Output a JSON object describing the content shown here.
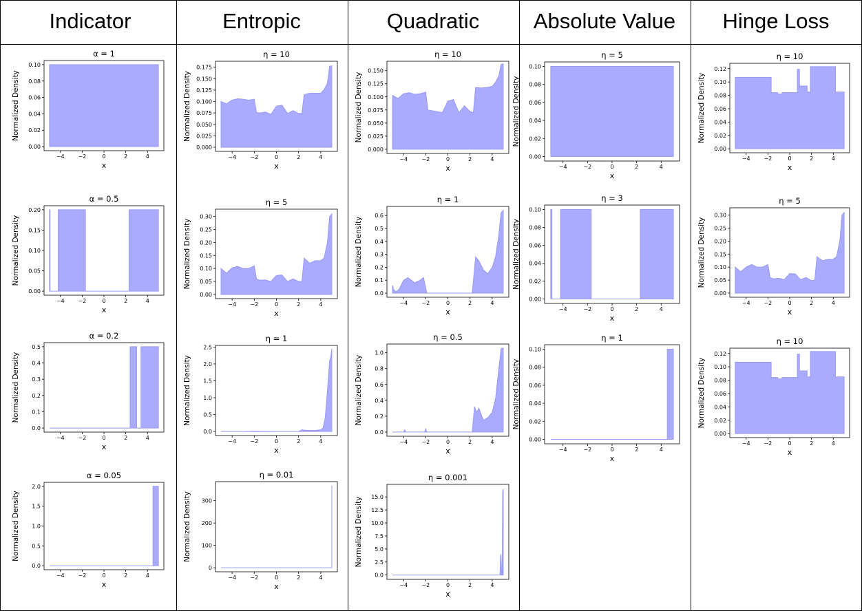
{
  "columns": [
    "Indicator",
    "Entropic",
    "Quadratic",
    "Absolute Value",
    "Hinge Loss"
  ],
  "colors": {
    "fill": "#aaaaff",
    "line": "#9a9af5",
    "border": "#000000"
  },
  "chart_data": [
    {
      "col": 0,
      "type": "area",
      "title": "α = 1",
      "xlabel": "x",
      "ylabel": "Normalized Density",
      "xlim": [
        -5.5,
        5.5
      ],
      "ylim": [
        -0.005,
        0.105
      ],
      "xticks": [
        -4,
        -2,
        0,
        2,
        4
      ],
      "xtick_labels": [
        "−4",
        "−2",
        "0",
        "2",
        "4"
      ],
      "yticks": [
        0,
        0.02,
        0.04,
        0.06,
        0.08,
        0.1
      ],
      "ytick_labels": [
        "0.00",
        "0.02",
        "0.04",
        "0.06",
        "0.08",
        "0.10"
      ],
      "x": [
        -5,
        5
      ],
      "y": [
        0.1,
        0.1
      ],
      "step": true
    },
    {
      "col": 0,
      "type": "area",
      "title": "α = 0.5",
      "xlabel": "x",
      "ylabel": "Normalized Density",
      "xlim": [
        -5.5,
        5.5
      ],
      "ylim": [
        -0.01,
        0.21
      ],
      "xticks": [
        -4,
        -2,
        0,
        2,
        4
      ],
      "xtick_labels": [
        "−4",
        "−2",
        "0",
        "2",
        "4"
      ],
      "yticks": [
        0,
        0.05,
        0.1,
        0.15,
        0.2
      ],
      "ytick_labels": [
        "0.00",
        "0.05",
        "0.10",
        "0.15",
        "0.20"
      ],
      "x": [
        -5,
        -4.95,
        -4.2,
        -1.7,
        2.3,
        5
      ],
      "y": [
        0.2,
        0,
        0.2,
        0,
        0.2,
        0.2
      ],
      "step": true
    },
    {
      "col": 0,
      "type": "area",
      "title": "α = 0.2",
      "xlabel": "x",
      "ylabel": "Normalized Density",
      "xlim": [
        -5.5,
        5.5
      ],
      "ylim": [
        -0.025,
        0.525
      ],
      "xticks": [
        -4,
        -2,
        0,
        2,
        4
      ],
      "xtick_labels": [
        "−4",
        "−2",
        "0",
        "2",
        "4"
      ],
      "yticks": [
        0,
        0.1,
        0.2,
        0.3,
        0.4,
        0.5
      ],
      "ytick_labels": [
        "0.0",
        "0.1",
        "0.2",
        "0.3",
        "0.4",
        "0.5"
      ],
      "x": [
        -5,
        2.4,
        3.0,
        3.4,
        3.7,
        5
      ],
      "y": [
        0,
        0.5,
        0,
        0.5,
        0.5,
        0.5
      ],
      "step": true
    },
    {
      "col": 0,
      "type": "area",
      "title": "α = 0.05",
      "xlabel": "x",
      "ylabel": "Normalized Density",
      "xlim": [
        -5.5,
        5.5
      ],
      "ylim": [
        -0.1,
        2.1
      ],
      "xticks": [
        -4,
        -2,
        0,
        2,
        4
      ],
      "xtick_labels": [
        "−4",
        "−2",
        "0",
        "2",
        "4"
      ],
      "yticks": [
        0,
        0.5,
        1,
        1.5,
        2
      ],
      "ytick_labels": [
        "0.0",
        "0.5",
        "1.0",
        "1.5",
        "2.0"
      ],
      "x": [
        -5,
        4.5,
        5
      ],
      "y": [
        0,
        2,
        2
      ],
      "step": true
    },
    {
      "col": 1,
      "type": "area",
      "title": "η = 10",
      "xlabel": "x",
      "ylabel": "Normalized Density",
      "xlim": [
        -5.5,
        5.5
      ],
      "ylim": [
        -0.009,
        0.188
      ],
      "xticks": [
        -4,
        -2,
        0,
        2,
        4
      ],
      "xtick_labels": [
        "−4",
        "−2",
        "0",
        "2",
        "4"
      ],
      "yticks": [
        0,
        0.025,
        0.05,
        0.075,
        0.1,
        0.125,
        0.15,
        0.175
      ],
      "ytick_labels": [
        "0.000",
        "0.025",
        "0.050",
        "0.075",
        "0.100",
        "0.125",
        "0.150",
        "0.175"
      ],
      "x": [
        -5,
        -4.5,
        -4,
        -3.5,
        -3,
        -2.5,
        -2,
        -1.8,
        -1.5,
        -1,
        -0.5,
        0,
        0.5,
        1,
        1.5,
        2,
        2.3,
        2.5,
        3,
        3.5,
        4,
        4.3,
        4.6,
        4.8,
        5
      ],
      "y": [
        0.1,
        0.095,
        0.103,
        0.106,
        0.105,
        0.103,
        0.105,
        0.076,
        0.075,
        0.077,
        0.072,
        0.09,
        0.092,
        0.074,
        0.08,
        0.074,
        0.074,
        0.115,
        0.118,
        0.118,
        0.118,
        0.126,
        0.14,
        0.177,
        0.178
      ],
      "step": false
    },
    {
      "col": 1,
      "type": "area",
      "title": "η = 5",
      "xlabel": "x",
      "ylabel": "Normalized Density",
      "xlim": [
        -5.5,
        5.5
      ],
      "ylim": [
        -0.016,
        0.328
      ],
      "xticks": [
        -4,
        -2,
        0,
        2,
        4
      ],
      "xtick_labels": [
        "−4",
        "−2",
        "0",
        "2",
        "4"
      ],
      "yticks": [
        0,
        0.05,
        0.1,
        0.15,
        0.2,
        0.25,
        0.3
      ],
      "ytick_labels": [
        "0.00",
        "0.05",
        "0.10",
        "0.15",
        "0.20",
        "0.25",
        "0.30"
      ],
      "x": [
        -5,
        -4.5,
        -4,
        -3.5,
        -3,
        -2.5,
        -2,
        -1.8,
        -1.5,
        -1,
        -0.5,
        0,
        0.5,
        1,
        1.5,
        2,
        2.3,
        2.5,
        3,
        3.5,
        4,
        4.3,
        4.6,
        4.8,
        5
      ],
      "y": [
        0.1,
        0.082,
        0.103,
        0.108,
        0.1,
        0.1,
        0.11,
        0.06,
        0.055,
        0.056,
        0.05,
        0.073,
        0.075,
        0.05,
        0.06,
        0.05,
        0.05,
        0.14,
        0.12,
        0.13,
        0.13,
        0.14,
        0.2,
        0.3,
        0.31
      ],
      "step": false
    },
    {
      "col": 1,
      "type": "area",
      "title": "η = 1",
      "xlabel": "x",
      "ylabel": "Normalized Density",
      "xlim": [
        -5.5,
        5.5
      ],
      "ylim": [
        -0.12,
        2.55
      ],
      "xticks": [
        -4,
        -2,
        0,
        2,
        4
      ],
      "xtick_labels": [
        "−4",
        "−2",
        "0",
        "2",
        "4"
      ],
      "yticks": [
        0,
        0.5,
        1,
        1.5,
        2,
        2.5
      ],
      "ytick_labels": [
        "0.0",
        "0.5",
        "1.0",
        "1.5",
        "2.0",
        "2.5"
      ],
      "x": [
        -5,
        -3,
        -2,
        0,
        2,
        2.3,
        2.5,
        3,
        3.5,
        4,
        4.2,
        4.4,
        4.6,
        4.8,
        4.9,
        5
      ],
      "y": [
        0,
        0,
        0.01,
        0,
        0,
        0.05,
        0.04,
        0.03,
        0.03,
        0.05,
        0.1,
        0.4,
        1.2,
        2.1,
        2.2,
        2.45
      ],
      "step": false
    },
    {
      "col": 1,
      "type": "area",
      "title": "η = 0.01",
      "xlabel": "x",
      "ylabel": "Normalized Density",
      "xlim": [
        -5.5,
        5.5
      ],
      "ylim": [
        -18,
        385
      ],
      "xticks": [
        -4,
        -2,
        0,
        2,
        4
      ],
      "xtick_labels": [
        "−4",
        "−2",
        "0",
        "2",
        "4"
      ],
      "yticks": [
        0,
        100,
        200,
        300
      ],
      "ytick_labels": [
        "0",
        "100",
        "200",
        "300"
      ],
      "x": [
        -5,
        4.97,
        5
      ],
      "y": [
        0,
        0,
        368
      ],
      "step": true
    },
    {
      "col": 2,
      "type": "area",
      "title": "η = 10",
      "xlabel": "x",
      "ylabel": "Normalized Density",
      "xlim": [
        -5.5,
        5.5
      ],
      "ylim": [
        -0.008,
        0.168
      ],
      "xticks": [
        -4,
        -2,
        0,
        2,
        4
      ],
      "xtick_labels": [
        "−4",
        "−2",
        "0",
        "2",
        "4"
      ],
      "yticks": [
        0,
        0.025,
        0.05,
        0.075,
        0.1,
        0.125,
        0.15
      ],
      "ytick_labels": [
        "0.000",
        "0.025",
        "0.050",
        "0.075",
        "0.100",
        "0.125",
        "0.150"
      ],
      "x": [
        -5,
        -4.5,
        -4,
        -3.5,
        -3,
        -2.5,
        -2,
        -1.8,
        -1.5,
        -1,
        -0.5,
        0,
        0.5,
        1,
        1.5,
        2,
        2.3,
        2.5,
        3,
        3.5,
        4,
        4.3,
        4.6,
        4.8,
        5
      ],
      "y": [
        0.103,
        0.097,
        0.106,
        0.108,
        0.105,
        0.106,
        0.109,
        0.075,
        0.074,
        0.072,
        0.07,
        0.092,
        0.095,
        0.07,
        0.083,
        0.072,
        0.07,
        0.118,
        0.117,
        0.118,
        0.12,
        0.128,
        0.14,
        0.162,
        0.163
      ],
      "step": false
    },
    {
      "col": 2,
      "type": "area",
      "title": "η = 1",
      "xlabel": "x",
      "ylabel": "Normalized Density",
      "xlim": [
        -5.5,
        5.5
      ],
      "ylim": [
        -0.032,
        0.67
      ],
      "xticks": [
        -4,
        -2,
        0,
        2,
        4
      ],
      "xtick_labels": [
        "−4",
        "−2",
        "0",
        "2",
        "4"
      ],
      "yticks": [
        0,
        0.1,
        0.2,
        0.3,
        0.4,
        0.5,
        0.6
      ],
      "ytick_labels": [
        "0.0",
        "0.1",
        "0.2",
        "0.3",
        "0.4",
        "0.5",
        "0.6"
      ],
      "x": [
        -5,
        -4.9,
        -4.7,
        -4.4,
        -4,
        -3.6,
        -3,
        -2.5,
        -2.2,
        -1.9,
        2.2,
        2.5,
        2.8,
        3.2,
        3.6,
        4,
        4.3,
        4.6,
        4.8,
        5
      ],
      "y": [
        0.06,
        0.03,
        0.01,
        0.03,
        0.1,
        0.12,
        0.08,
        0.1,
        0.12,
        0,
        0,
        0.28,
        0.25,
        0.18,
        0.15,
        0.2,
        0.28,
        0.45,
        0.62,
        0.64
      ],
      "step": false
    },
    {
      "col": 2,
      "type": "area",
      "title": "η = 0.5",
      "xlabel": "x",
      "ylabel": "Normalized Density",
      "xlim": [
        -5.5,
        5.5
      ],
      "ylim": [
        -0.053,
        1.11
      ],
      "xticks": [
        -4,
        -2,
        0,
        2,
        4
      ],
      "xtick_labels": [
        "−4",
        "−2",
        "0",
        "2",
        "4"
      ],
      "yticks": [
        0,
        0.2,
        0.4,
        0.6,
        0.8,
        1
      ],
      "ytick_labels": [
        "0.0",
        "0.2",
        "0.4",
        "0.6",
        "0.8",
        "1.0"
      ],
      "x": [
        -5,
        -4,
        -3.9,
        -3.8,
        -2.1,
        -2,
        -1.9,
        2.2,
        2.4,
        2.6,
        2.8,
        3.2,
        3.6,
        4,
        4.3,
        4.6,
        4.8,
        5
      ],
      "y": [
        0,
        0,
        0.03,
        0,
        0,
        0.04,
        0,
        0,
        0.32,
        0.25,
        0.3,
        0.15,
        0.18,
        0.25,
        0.42,
        0.8,
        1.05,
        1.06
      ],
      "step": false
    },
    {
      "col": 2,
      "type": "area",
      "title": "η = 0.001",
      "xlabel": "x",
      "ylabel": "Normalized Density",
      "xlim": [
        -5.5,
        5.5
      ],
      "ylim": [
        -0.83,
        17.4
      ],
      "xticks": [
        -4,
        -2,
        0,
        2,
        4
      ],
      "xtick_labels": [
        "−4",
        "−2",
        "0",
        "2",
        "4"
      ],
      "yticks": [
        0,
        2.5,
        5,
        7.5,
        10,
        12.5,
        15
      ],
      "ytick_labels": [
        "0.0",
        "2.5",
        "5.0",
        "7.5",
        "10.0",
        "12.5",
        "15.0"
      ],
      "x": [
        -5,
        4.7,
        4.75,
        4.8,
        4.85,
        4.9,
        4.95,
        5
      ],
      "y": [
        0,
        0,
        3.5,
        4,
        0,
        0,
        16,
        16.5
      ],
      "step": false
    },
    {
      "col": 3,
      "type": "area",
      "title": "η = 5",
      "xlabel": "x",
      "ylabel": "Normalized Density",
      "xlim": [
        -5.5,
        5.5
      ],
      "ylim": [
        -0.005,
        0.105
      ],
      "xticks": [
        -4,
        -2,
        0,
        2,
        4
      ],
      "xtick_labels": [
        "−4",
        "−2",
        "0",
        "2",
        "4"
      ],
      "yticks": [
        0,
        0.02,
        0.04,
        0.06,
        0.08,
        0.1
      ],
      "ytick_labels": [
        "0.00",
        "0.02",
        "0.04",
        "0.06",
        "0.08",
        "0.10"
      ],
      "x": [
        -5,
        5
      ],
      "y": [
        0.1,
        0.1
      ],
      "step": true
    },
    {
      "col": 3,
      "type": "area",
      "title": "η = 3",
      "xlabel": "x",
      "ylabel": "Normalized Density",
      "xlim": [
        -5.5,
        5.5
      ],
      "ylim": [
        -0.005,
        0.105
      ],
      "xticks": [
        -4,
        -2,
        0,
        2,
        4
      ],
      "xtick_labels": [
        "−4",
        "−2",
        "0",
        "2",
        "4"
      ],
      "yticks": [
        0,
        0.02,
        0.04,
        0.06,
        0.08,
        0.1
      ],
      "ytick_labels": [
        "0.00",
        "0.02",
        "0.04",
        "0.06",
        "0.08",
        "0.10"
      ],
      "x": [
        -5,
        -4.9,
        -4.2,
        -1.7,
        2.3,
        5
      ],
      "y": [
        0.1,
        0,
        0.1,
        0,
        0.1,
        0.1
      ],
      "step": true
    },
    {
      "col": 3,
      "type": "area",
      "title": "η = 1",
      "xlabel": "x",
      "ylabel": "Normalized Density",
      "xlim": [
        -5.5,
        5.5
      ],
      "ylim": [
        -0.005,
        0.105
      ],
      "xticks": [
        -4,
        -2,
        0,
        2,
        4
      ],
      "xtick_labels": [
        "−4",
        "−2",
        "0",
        "2",
        "4"
      ],
      "yticks": [
        0,
        0.02,
        0.04,
        0.06,
        0.08,
        0.1
      ],
      "ytick_labels": [
        "0.00",
        "0.02",
        "0.04",
        "0.06",
        "0.08",
        "0.10"
      ],
      "x": [
        -5,
        4.5,
        5
      ],
      "y": [
        0,
        0.1,
        0.1
      ],
      "step": true
    },
    {
      "col": 4,
      "type": "area",
      "title": "η = 10",
      "xlabel": "x",
      "ylabel": "Normalized Density",
      "xlim": [
        -5.5,
        5.5
      ],
      "ylim": [
        -0.006,
        0.128
      ],
      "xticks": [
        -4,
        -2,
        0,
        2,
        4
      ],
      "xtick_labels": [
        "−4",
        "−2",
        "0",
        "2",
        "4"
      ],
      "yticks": [
        0,
        0.02,
        0.04,
        0.06,
        0.08,
        0.1,
        0.12
      ],
      "ytick_labels": [
        "0.00",
        "0.02",
        "0.04",
        "0.06",
        "0.08",
        "0.10",
        "0.12"
      ],
      "x": [
        -5,
        -1.7,
        -1.1,
        -0.7,
        -0.3,
        0.7,
        0.9,
        1.1,
        1.6,
        1.9,
        2.2,
        4.2,
        5
      ],
      "y": [
        0.107,
        0.084,
        0.082,
        0.084,
        0.084,
        0.119,
        0.094,
        0.094,
        0.085,
        0.123,
        0.123,
        0.085,
        0.085
      ],
      "step": true
    },
    {
      "col": 4,
      "type": "area",
      "title": "η = 5",
      "xlabel": "x",
      "ylabel": "Normalized Density",
      "xlim": [
        -5.5,
        5.5
      ],
      "ylim": [
        -0.016,
        0.328
      ],
      "xticks": [
        -4,
        -2,
        0,
        2,
        4
      ],
      "xtick_labels": [
        "−4",
        "−2",
        "0",
        "2",
        "4"
      ],
      "yticks": [
        0,
        0.05,
        0.1,
        0.15,
        0.2,
        0.25,
        0.3
      ],
      "ytick_labels": [
        "0.00",
        "0.05",
        "0.10",
        "0.15",
        "0.20",
        "0.25",
        "0.30"
      ],
      "x": [
        -5,
        -4.5,
        -4,
        -3.5,
        -3,
        -2.5,
        -2,
        -1.8,
        -1.5,
        -1,
        -0.5,
        0,
        0.5,
        1,
        1.5,
        2,
        2.3,
        2.5,
        3,
        3.5,
        4,
        4.3,
        4.6,
        4.8,
        5
      ],
      "y": [
        0.1,
        0.082,
        0.1,
        0.11,
        0.1,
        0.1,
        0.11,
        0.06,
        0.055,
        0.057,
        0.052,
        0.075,
        0.074,
        0.052,
        0.06,
        0.048,
        0.05,
        0.14,
        0.125,
        0.13,
        0.13,
        0.14,
        0.2,
        0.3,
        0.31
      ],
      "step": false
    },
    {
      "col": 4,
      "type": "area",
      "title": "η = 10",
      "xlabel": "x",
      "ylabel": "Normalized Density",
      "xlim": [
        -5.5,
        5.5
      ],
      "ylim": [
        -0.006,
        0.128
      ],
      "xticks": [
        -4,
        -2,
        0,
        2,
        4
      ],
      "xtick_labels": [
        "−4",
        "−2",
        "0",
        "2",
        "4"
      ],
      "yticks": [
        0,
        0.02,
        0.04,
        0.06,
        0.08,
        0.1,
        0.12
      ],
      "ytick_labels": [
        "0.00",
        "0.02",
        "0.04",
        "0.06",
        "0.08",
        "0.10",
        "0.12"
      ],
      "x": [
        -5,
        -1.7,
        -1.1,
        -0.7,
        -0.3,
        0.7,
        0.9,
        1.1,
        1.6,
        1.9,
        2.2,
        4.2,
        5
      ],
      "y": [
        0.107,
        0.084,
        0.082,
        0.084,
        0.084,
        0.119,
        0.094,
        0.094,
        0.085,
        0.123,
        0.123,
        0.085,
        0.085
      ],
      "step": true
    }
  ]
}
